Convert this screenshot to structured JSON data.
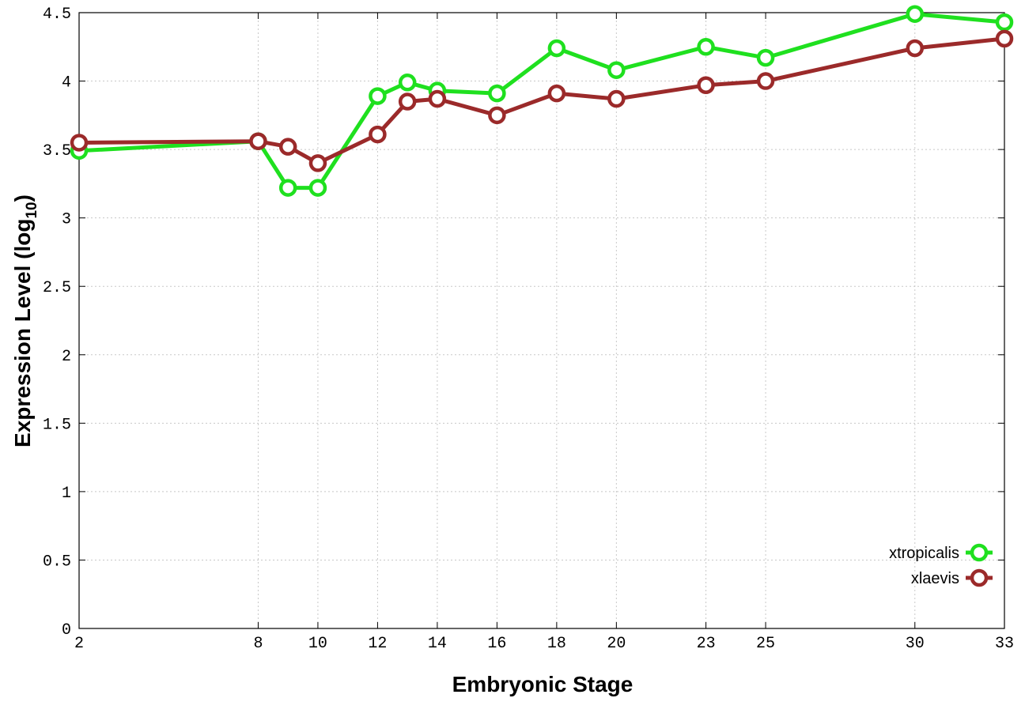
{
  "chart_data": {
    "type": "line",
    "xlabel": "Embryonic Stage",
    "ylabel": "Expression Level (log",
    "ylabel_subscript": "10",
    "ylabel_close": ")",
    "x": [
      2,
      8,
      9,
      10,
      12,
      13,
      14,
      16,
      18,
      20,
      23,
      25,
      30,
      33
    ],
    "x_ticks": [
      2,
      8,
      10,
      12,
      14,
      16,
      18,
      20,
      23,
      25,
      30,
      33
    ],
    "x_tick_labels": [
      "2",
      "8",
      "10",
      "12",
      "14",
      "16",
      "18",
      "20",
      "23",
      "25",
      "30",
      "33"
    ],
    "xlim": [
      2,
      33
    ],
    "ylim": [
      0,
      4.5
    ],
    "y_ticks": [
      0,
      0.5,
      1,
      1.5,
      2,
      2.5,
      3,
      3.5,
      4,
      4.5
    ],
    "y_tick_labels": [
      "0",
      "0.5",
      "1",
      "1.5",
      "2",
      "2.5",
      "3",
      "3.5",
      "4",
      "4.5"
    ],
    "grid": true,
    "legend_position": "bottom-right",
    "series": [
      {
        "name": "xtropicalis",
        "color": "#1fe01f",
        "values": [
          3.49,
          3.56,
          3.22,
          3.22,
          3.89,
          3.99,
          3.93,
          3.91,
          4.24,
          4.08,
          4.25,
          4.17,
          4.49,
          4.43
        ]
      },
      {
        "name": "xlaevis",
        "color": "#9b2a2a",
        "values": [
          3.55,
          3.56,
          3.52,
          3.4,
          3.61,
          3.85,
          3.87,
          3.75,
          3.91,
          3.87,
          3.97,
          4.0,
          4.24,
          4.31
        ]
      }
    ]
  }
}
